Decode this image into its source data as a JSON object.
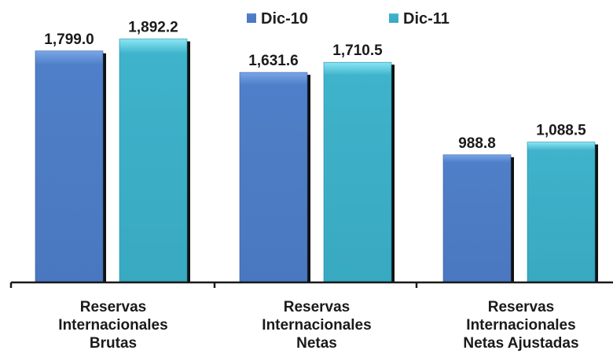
{
  "chart_data": {
    "type": "bar",
    "categories": [
      [
        "Reservas",
        "Internacionales",
        "Brutas"
      ],
      [
        "Reservas",
        "Internacionales",
        "Netas"
      ],
      [
        "Reservas",
        "Internacionales",
        "Netas Ajustadas"
      ]
    ],
    "series": [
      {
        "name": "Dic-10",
        "values": [
          1799.0,
          1631.6,
          988.8
        ],
        "labels": [
          "1,799.0",
          "1,631.6",
          "988.8"
        ],
        "color": "#4f7fc8",
        "color_light": "#7aa6e8",
        "color_dark": "#2f5aa3"
      },
      {
        "name": "Dic-11",
        "values": [
          1892.2,
          1710.5,
          1088.5
        ],
        "labels": [
          "1,892.2",
          "1,710.5",
          "1,088.5"
        ],
        "color": "#3fb3cb",
        "color_light": "#7fe0f0",
        "color_dark": "#1f8aa2"
      }
    ],
    "ylim": [
      0,
      2000
    ],
    "grid": false,
    "legend_position": "top"
  }
}
